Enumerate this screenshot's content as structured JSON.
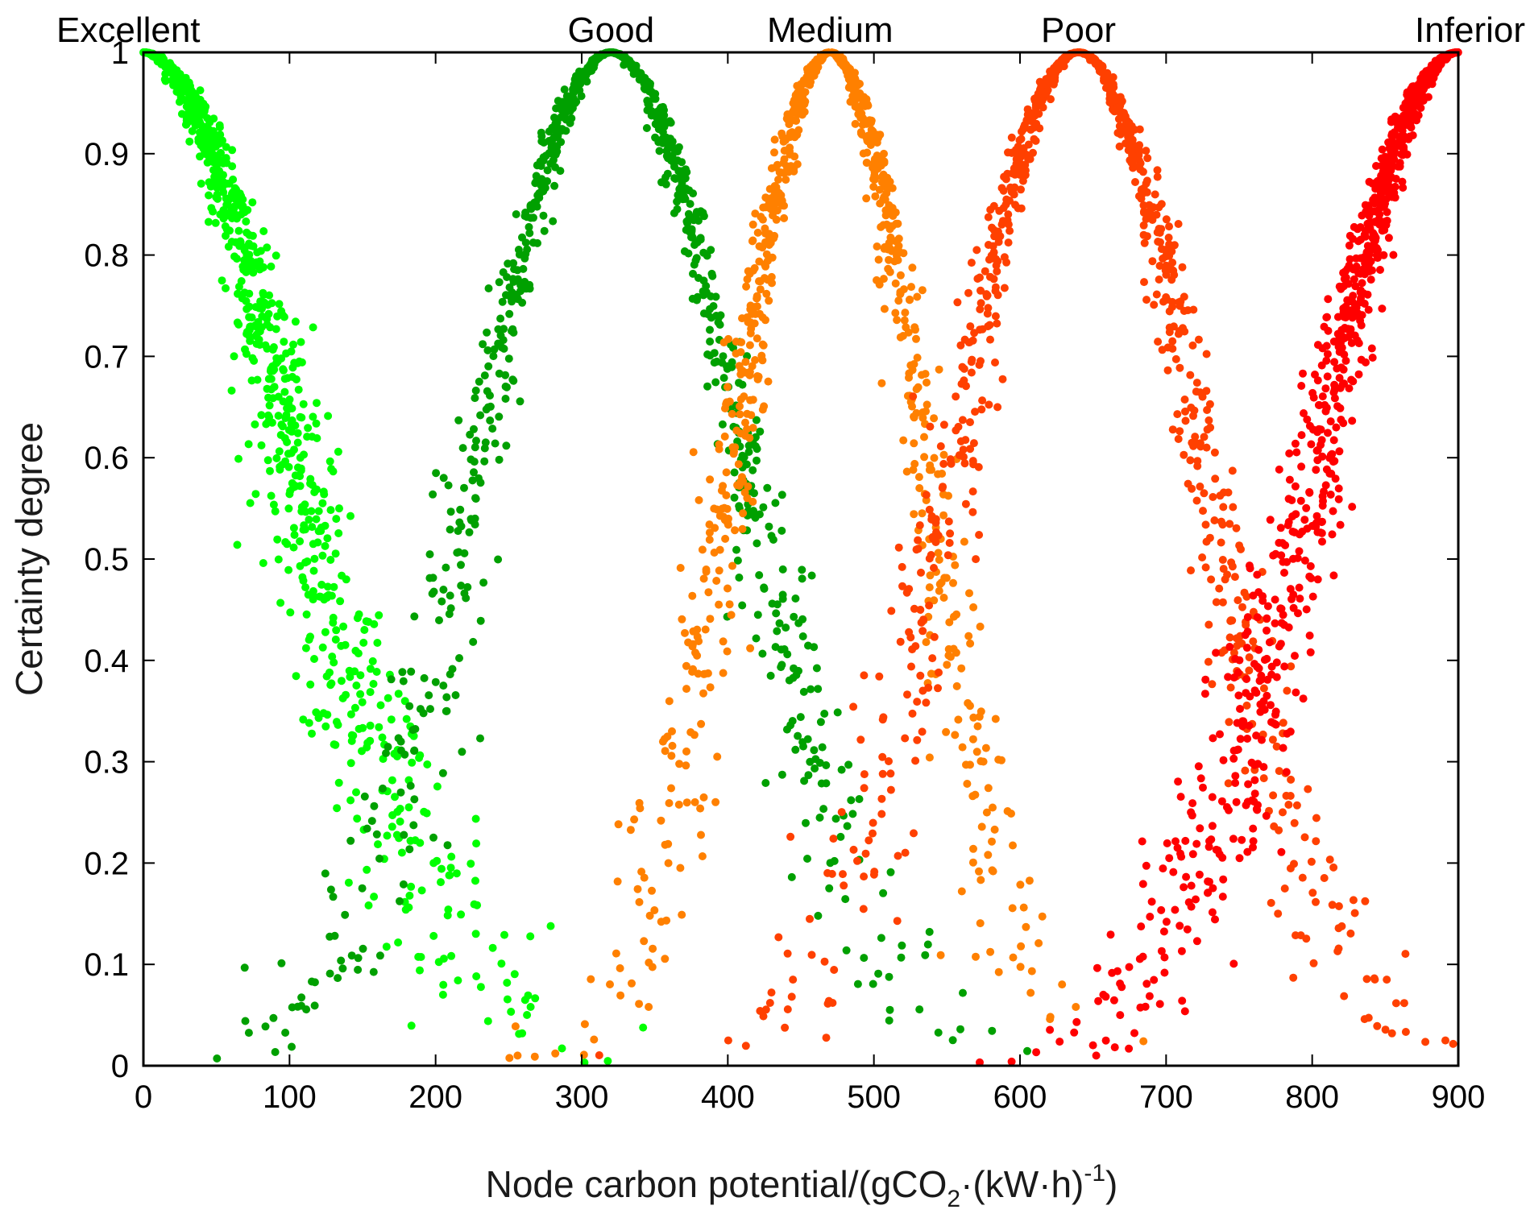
{
  "chart_data": {
    "type": "scatter",
    "title": "",
    "xlabel": {
      "main": "Node carbon potential/(gCO",
      "sub": "2",
      "mid": "·(kW·h)",
      "sup": "-1",
      "end": ")"
    },
    "ylabel": "Certainty degree",
    "xlim": [
      0,
      900
    ],
    "ylim": [
      0,
      1
    ],
    "x_ticks": [
      0,
      100,
      200,
      300,
      400,
      500,
      600,
      700,
      800,
      900
    ],
    "x_tick_labels": [
      "0",
      "100",
      "200",
      "300",
      "400",
      "500",
      "600",
      "700",
      "800",
      "900"
    ],
    "y_ticks": [
      0,
      0.1,
      0.2,
      0.3,
      0.4,
      0.5,
      0.6,
      0.7,
      0.8,
      0.9,
      1
    ],
    "y_tick_labels": [
      "0",
      "0.1",
      "0.2",
      "0.3",
      "0.4",
      "0.5",
      "0.6",
      "0.7",
      "0.8",
      "0.9",
      "1"
    ],
    "grid": false,
    "series": [
      {
        "name": "Excellent",
        "peak_x": 0,
        "width": 103,
        "color": "#00ff00",
        "side": "right",
        "dispersion": 0.22
      },
      {
        "name": "Good",
        "peak_x": 320,
        "width": 90,
        "color": "#00a000",
        "side": "both",
        "dispersion": 0.17
      },
      {
        "name": "Medium",
        "peak_x": 470,
        "width": 65,
        "color": "#ff8000",
        "side": "both",
        "dispersion": 0.22
      },
      {
        "name": "Poor",
        "peak_x": 640,
        "width": 85,
        "color": "#ff4000",
        "side": "both",
        "dispersion": 0.18
      },
      {
        "name": "Inferior",
        "peak_x": 900,
        "width": 96,
        "color": "#ff0000",
        "side": "left",
        "dispersion": 0.2
      }
    ],
    "points_per_series": 900
  }
}
